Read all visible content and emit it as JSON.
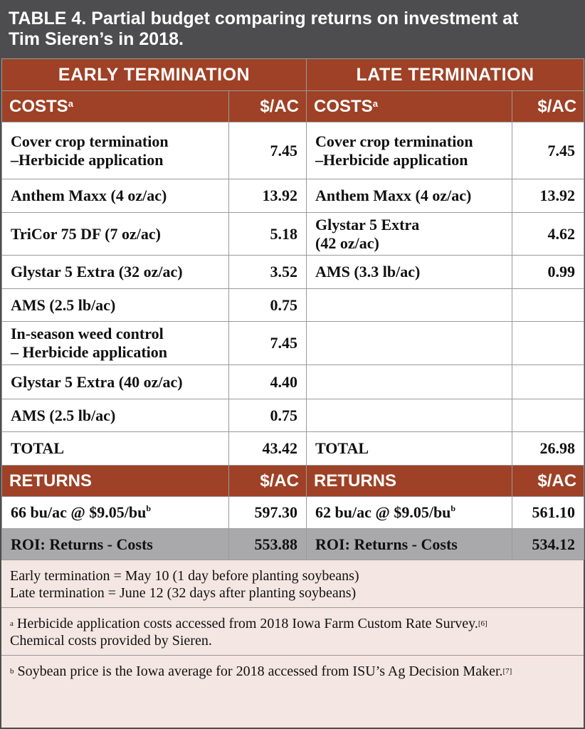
{
  "title": {
    "line1": "TABLE 4. Partial budget comparing returns on investment at",
    "line2": "Tim Sieren’s in 2018."
  },
  "sections": {
    "early": "EARLY TERMINATION",
    "late": "LATE TERMINATION"
  },
  "costs_header": {
    "label": "COSTS",
    "sup": "a",
    "unit": "$/AC"
  },
  "cost_rows": [
    {
      "early_item": "Cover crop termination\n–Herbicide application",
      "early_cost": "7.45",
      "late_item": "Cover crop termination\n–Herbicide application",
      "late_cost": "7.45"
    },
    {
      "early_item": "Anthem Maxx (4 oz/ac)",
      "early_cost": "13.92",
      "late_item": "Anthem Maxx (4 oz/ac)",
      "late_cost": "13.92"
    },
    {
      "early_item": "TriCor 75 DF (7 oz/ac)",
      "early_cost": "5.18",
      "late_item": "Glystar 5 Extra\n(42 oz/ac)",
      "late_cost": "4.62"
    },
    {
      "early_item": "Glystar 5 Extra (32 oz/ac)",
      "early_cost": "3.52",
      "late_item": "AMS (3.3 lb/ac)",
      "late_cost": "0.99"
    },
    {
      "early_item": "AMS (2.5 lb/ac)",
      "early_cost": "0.75",
      "late_item": "",
      "late_cost": ""
    },
    {
      "early_item": "In-season weed control\n– Herbicide application",
      "early_cost": "7.45",
      "late_item": "",
      "late_cost": ""
    },
    {
      "early_item": "Glystar 5 Extra (40 oz/ac)",
      "early_cost": "4.40",
      "late_item": "",
      "late_cost": ""
    },
    {
      "early_item": "AMS (2.5 lb/ac)",
      "early_cost": "0.75",
      "late_item": "",
      "late_cost": ""
    },
    {
      "early_item": "TOTAL",
      "early_cost": "43.42",
      "late_item": "TOTAL",
      "late_cost": "26.98"
    }
  ],
  "returns_header": {
    "label": "RETURNS",
    "unit": "$/AC"
  },
  "returns_row": {
    "early_item": "66 bu/ac @ $9.05/bu",
    "early_sup": "b",
    "early_value": "597.30",
    "late_item": "62 bu/ac @ $9.05/bu",
    "late_sup": "b",
    "late_value": "561.10"
  },
  "roi_row": {
    "early_label": "ROI: Returns - Costs",
    "early_value": "553.88",
    "late_label": "ROI: Returns - Costs",
    "late_value": "534.12"
  },
  "notes": {
    "dates_line1": "Early termination = May 10 (1 day before planting soybeans)",
    "dates_line2": "Late termination = June 12 (32 days after planting soybeans)",
    "a_marker": "a",
    "a_text": "Herbicide application costs accessed from 2018 Iowa Farm Custom Rate Survey.",
    "a_ref": "[6]",
    "a_text2": "Chemical costs provided by Sieren.",
    "b_marker": "b",
    "b_text": "Soybean price is the Iowa average for 2018 accessed from ISU’s Ag Decision Maker.",
    "b_ref": "[7]"
  },
  "colors": {
    "header_brown": "#9e4126",
    "title_gray": "#4d4d4f",
    "roi_gray": "#a9a9ab",
    "note_background": "#f4e6e2"
  }
}
